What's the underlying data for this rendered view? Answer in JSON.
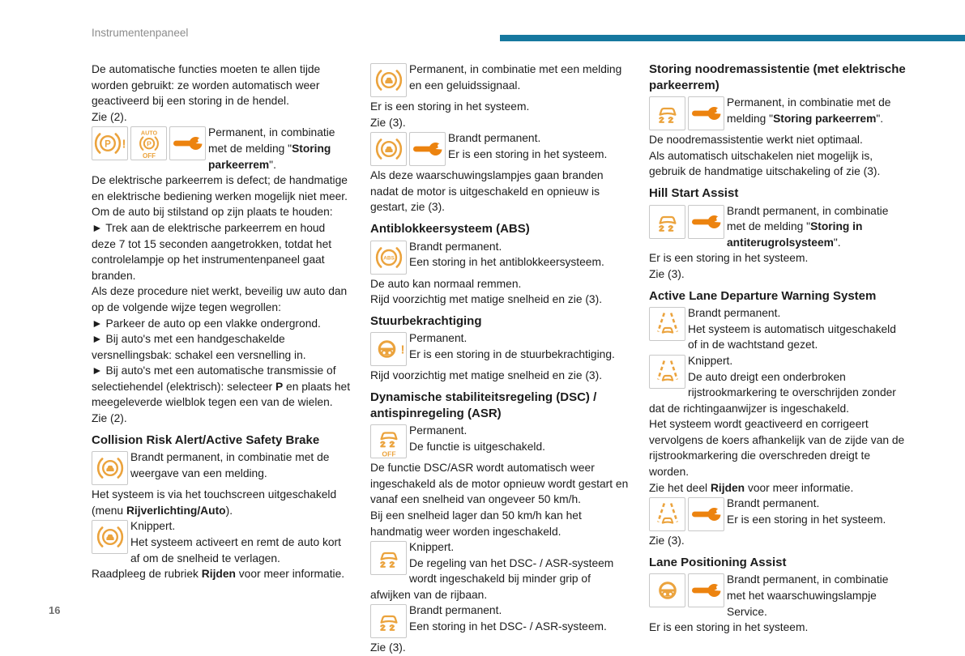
{
  "page": {
    "header_label": "Instrumentenpaneel",
    "page_number": "16",
    "accent_bar_color": "#16789f",
    "amber": "#eba33d",
    "wrench_orange": "#ec830f"
  },
  "icon_legend": {
    "brake-warning": "brake system warning lamp (car between brake arcs)",
    "parking-brake-warning": "electric parking brake warning ((P))!",
    "parking-brake-auto-off": "AUTO ((P)) OFF parking brake lamp",
    "wrench": "service / storing wrench lamp",
    "abs": "anti-lock braking system ((ABS)) lamp",
    "steering-warning": "power steering warning (wheel + !)",
    "steering": "steering wheel lamp",
    "esp": "DSC/ASR stability control lamp (car with skid marks)",
    "esp-off": "DSC/ASR OFF lamp",
    "lane-departure": "lane departure lamp (car between dashed lines)"
  },
  "columns": [
    [
      {
        "type": "p",
        "seg": [
          {
            "t": "De automatische functies moeten te allen tijde worden gebruikt: ze worden automatisch weer geactiveerd bij een storing in de hendel."
          }
        ]
      },
      {
        "type": "p",
        "seg": [
          {
            "t": "Zie (2)."
          }
        ]
      },
      {
        "type": "icons",
        "icons": [
          "parking-brake-warning",
          "parking-brake-auto-off",
          "wrench"
        ],
        "seg": [
          {
            "t": "Permanent, in combinatie met de melding \""
          },
          {
            "t": "Storing parkeerrem",
            "b": true
          },
          {
            "t": "\"."
          }
        ]
      },
      {
        "type": "p",
        "seg": [
          {
            "t": "De elektrische parkeerrem is defect; de handmatige en elektrische bediening werken mogelijk niet meer."
          }
        ]
      },
      {
        "type": "p",
        "seg": [
          {
            "t": "Om de auto bij stilstand op zijn plaats te houden:"
          }
        ]
      },
      {
        "type": "p",
        "seg": [
          {
            "t": "►  Trek aan de elektrische parkeerrem en houd deze 7 tot 15 seconden aangetrokken, totdat het controlelampje op het instrumentenpaneel gaat branden."
          }
        ]
      },
      {
        "type": "p",
        "seg": [
          {
            "t": "Als deze procedure niet werkt, beveilig uw auto dan op de volgende wijze tegen wegrollen:"
          }
        ]
      },
      {
        "type": "p",
        "seg": [
          {
            "t": "►  Parkeer de auto op een vlakke ondergrond."
          }
        ]
      },
      {
        "type": "p",
        "seg": [
          {
            "t": "►  Bij auto's met een handgeschakelde versnellingsbak: schakel een versnelling in."
          }
        ]
      },
      {
        "type": "p",
        "seg": [
          {
            "t": "►  Bij auto's met een automatische transmissie of selectiehendel (elektrisch): selecteer "
          },
          {
            "t": "P",
            "b": true
          },
          {
            "t": " en plaats het meegeleverde wielblok tegen een van de wielen."
          }
        ]
      },
      {
        "type": "p",
        "seg": [
          {
            "t": "Zie (2)."
          }
        ]
      },
      {
        "type": "h",
        "t": "Collision Risk Alert/Active Safety Brake"
      },
      {
        "type": "icons",
        "icons": [
          "brake-warning"
        ],
        "seg": [
          {
            "t": "Brandt permanent, in combinatie met de weergave van een melding."
          }
        ]
      },
      {
        "type": "p",
        "seg": [
          {
            "t": "Het systeem is via het touchscreen uitgeschakeld (menu "
          },
          {
            "t": "Rijverlichting/Auto",
            "b": true
          },
          {
            "t": ")."
          }
        ]
      },
      {
        "type": "icons",
        "icons": [
          "brake-warning"
        ],
        "seg": [
          {
            "t": "Knippert.",
            "nl": true
          },
          {
            "t": "Het systeem activeert en remt de auto kort af om de snelheid te verlagen."
          }
        ]
      },
      {
        "type": "p",
        "seg": [
          {
            "t": "Raadpleeg de rubriek "
          },
          {
            "t": "Rijden",
            "b": true
          },
          {
            "t": " voor meer informatie."
          }
        ]
      }
    ],
    [
      {
        "type": "icons",
        "icons": [
          "brake-warning"
        ],
        "seg": [
          {
            "t": "Permanent, in combinatie met een melding en een geluidssignaal."
          }
        ]
      },
      {
        "type": "p",
        "seg": [
          {
            "t": "Er is een storing in het systeem."
          }
        ]
      },
      {
        "type": "p",
        "seg": [
          {
            "t": "Zie (3)."
          }
        ]
      },
      {
        "type": "icons",
        "icons": [
          "brake-warning",
          "wrench"
        ],
        "seg": [
          {
            "t": "Brandt permanent.",
            "nl": true
          },
          {
            "t": "Er is een storing in het systeem."
          }
        ]
      },
      {
        "type": "p",
        "seg": [
          {
            "t": "Als deze waarschuwingslampjes gaan branden nadat de motor is uitgeschakeld en opnieuw is gestart, zie (3)."
          }
        ]
      },
      {
        "type": "h",
        "t": "Antiblokkeersysteem (ABS)"
      },
      {
        "type": "icons",
        "icons": [
          "abs"
        ],
        "seg": [
          {
            "t": "Brandt permanent.",
            "nl": true
          },
          {
            "t": "Een storing in het antiblokkeersysteem."
          }
        ]
      },
      {
        "type": "p",
        "seg": [
          {
            "t": "De auto kan normaal remmen."
          }
        ]
      },
      {
        "type": "p",
        "seg": [
          {
            "t": "Rijd voorzichtig met matige snelheid en zie (3)."
          }
        ]
      },
      {
        "type": "h",
        "t": "Stuurbekrachtiging"
      },
      {
        "type": "icons",
        "icons": [
          "steering-warning"
        ],
        "seg": [
          {
            "t": "Permanent.",
            "nl": true
          },
          {
            "t": "Er is een storing in de stuurbekrachtiging."
          }
        ]
      },
      {
        "type": "p",
        "seg": [
          {
            "t": "Rijd voorzichtig met matige snelheid en zie (3)."
          }
        ]
      },
      {
        "type": "h",
        "t": "Dynamische stabiliteitsregeling (DSC) / antispinregeling (ASR)"
      },
      {
        "type": "icons",
        "icons": [
          "esp-off"
        ],
        "seg": [
          {
            "t": "Permanent.",
            "nl": true
          },
          {
            "t": "De functie is uitgeschakeld."
          }
        ]
      },
      {
        "type": "p",
        "seg": [
          {
            "t": "De functie DSC/ASR wordt automatisch weer ingeschakeld als de motor opnieuw wordt gestart en vanaf een snelheid van ongeveer 50 km/h."
          }
        ]
      },
      {
        "type": "p",
        "seg": [
          {
            "t": "Bij een snelheid lager dan 50 km/h kan het handmatig weer worden ingeschakeld."
          }
        ]
      },
      {
        "type": "icons",
        "icons": [
          "esp"
        ],
        "seg": [
          {
            "t": "Knippert.",
            "nl": true
          },
          {
            "t": "De regeling van het DSC- / ASR-systeem wordt ingeschakeld bij minder grip of afwijken van de rijbaan."
          }
        ]
      },
      {
        "type": "icons",
        "icons": [
          "esp"
        ],
        "seg": [
          {
            "t": "Brandt permanent.",
            "nl": true
          },
          {
            "t": "Een storing in het DSC- / ASR-systeem."
          }
        ]
      },
      {
        "type": "p",
        "seg": [
          {
            "t": "Zie (3)."
          }
        ]
      }
    ],
    [
      {
        "type": "h",
        "t": "Storing noodremassistentie (met elektrische parkeerrem)"
      },
      {
        "type": "icons",
        "icons": [
          "esp",
          "wrench"
        ],
        "seg": [
          {
            "t": "Permanent, in combinatie met de melding \""
          },
          {
            "t": "Storing parkeerrem",
            "b": true
          },
          {
            "t": "\"."
          }
        ]
      },
      {
        "type": "p",
        "seg": [
          {
            "t": "De noodremassistentie werkt niet optimaal."
          }
        ]
      },
      {
        "type": "p",
        "seg": [
          {
            "t": "Als automatisch uitschakelen niet mogelijk is, gebruik de handmatige uitschakeling of zie (3)."
          }
        ]
      },
      {
        "type": "h",
        "t": "Hill Start Assist"
      },
      {
        "type": "icons",
        "icons": [
          "esp",
          "wrench"
        ],
        "seg": [
          {
            "t": "Brandt permanent, in combinatie met de melding \""
          },
          {
            "t": "Storing in antiterugrolsysteem",
            "b": true
          },
          {
            "t": "\"."
          }
        ]
      },
      {
        "type": "p",
        "seg": [
          {
            "t": "Er is een storing in het systeem."
          }
        ]
      },
      {
        "type": "p",
        "seg": [
          {
            "t": "Zie (3)."
          }
        ]
      },
      {
        "type": "h",
        "t": "Active Lane Departure Warning System"
      },
      {
        "type": "icons",
        "icons": [
          "lane-departure"
        ],
        "seg": [
          {
            "t": "Brandt permanent.",
            "nl": true
          },
          {
            "t": "Het systeem is automatisch uitgeschakeld of in de wachtstand gezet."
          }
        ]
      },
      {
        "type": "icons",
        "icons": [
          "lane-departure"
        ],
        "seg": [
          {
            "t": "Knippert.",
            "nl": true
          },
          {
            "t": "De auto dreigt een onderbroken rijstrookmarkering te overschrijden zonder dat de richtingaanwijzer is ingeschakeld."
          }
        ]
      },
      {
        "type": "p",
        "seg": [
          {
            "t": "Het systeem wordt geactiveerd en corrigeert vervolgens de koers afhankelijk van de zijde van de rijstrookmarkering die overschreden dreigt te worden."
          }
        ]
      },
      {
        "type": "p",
        "seg": [
          {
            "t": "Zie het deel "
          },
          {
            "t": "Rijden",
            "b": true
          },
          {
            "t": " voor meer informatie."
          }
        ]
      },
      {
        "type": "icons",
        "icons": [
          "lane-departure",
          "wrench"
        ],
        "seg": [
          {
            "t": "Brandt permanent.",
            "nl": true
          },
          {
            "t": "Er is een storing in het systeem."
          }
        ]
      },
      {
        "type": "p",
        "seg": [
          {
            "t": "Zie (3)."
          }
        ]
      },
      {
        "type": "h",
        "t": "Lane Positioning Assist"
      },
      {
        "type": "icons",
        "icons": [
          "steering",
          "wrench"
        ],
        "seg": [
          {
            "t": "Brandt permanent, in combinatie met het waarschuwingslampje Service."
          }
        ]
      },
      {
        "type": "p",
        "seg": [
          {
            "t": "Er is een storing in het systeem."
          }
        ]
      }
    ]
  ]
}
